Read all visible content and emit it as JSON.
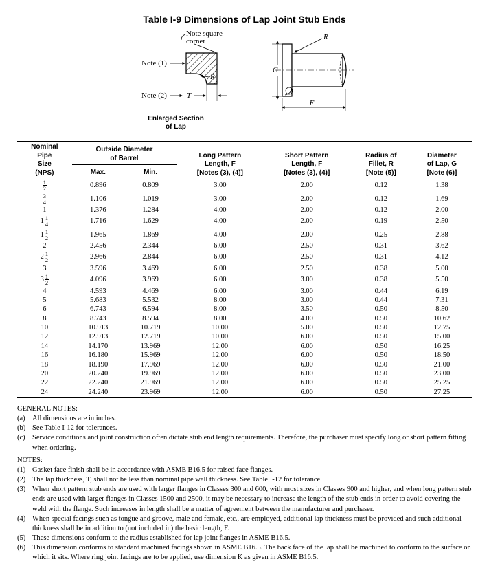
{
  "title": "Table I-9   Dimensions of Lap Joint Stub Ends",
  "figure": {
    "note_square_corner": "Note square\ncorner",
    "note1": "Note (1)",
    "note2": "Note (2)",
    "R": "R",
    "T": "T",
    "G": "G",
    "F": "F",
    "enlarged_caption": "Enlarged Section\nof Lap"
  },
  "columns": {
    "nps": "Nominal\nPipe\nSize\n(NPS)",
    "od": "Outside Diameter\nof Barrel",
    "od_max": "Max.",
    "od_min": "Min.",
    "longF": "Long Pattern\nLength, F\n[Notes (3), (4)]",
    "shortF": "Short Pattern\nLength, F\n[Notes (3), (4)]",
    "radiusR": "Radius of\nFillet, R\n[Note (5)]",
    "lapG": "Diameter\nof Lap, G\n[Note (6)]"
  },
  "rows": [
    {
      "nps_whole": "",
      "nps_num": "1",
      "nps_den": "2",
      "max": "0.896",
      "min": "0.809",
      "long": "3.00",
      "short": "2.00",
      "r": "0.12",
      "g": "1.38",
      "group_start": false
    },
    {
      "nps_whole": "",
      "nps_num": "3",
      "nps_den": "4",
      "max": "1.106",
      "min": "1.019",
      "long": "3.00",
      "short": "2.00",
      "r": "0.12",
      "g": "1.69",
      "group_start": false
    },
    {
      "nps_whole": "1",
      "nps_num": "",
      "nps_den": "",
      "max": "1.376",
      "min": "1.284",
      "long": "4.00",
      "short": "2.00",
      "r": "0.12",
      "g": "2.00",
      "group_start": false
    },
    {
      "nps_whole": "1",
      "nps_num": "1",
      "nps_den": "4",
      "max": "1.716",
      "min": "1.629",
      "long": "4.00",
      "short": "2.00",
      "r": "0.19",
      "g": "2.50",
      "group_start": false
    },
    {
      "nps_whole": "1",
      "nps_num": "1",
      "nps_den": "2",
      "max": "1.965",
      "min": "1.869",
      "long": "4.00",
      "short": "2.00",
      "r": "0.25",
      "g": "2.88",
      "group_start": false
    },
    {
      "nps_whole": "2",
      "nps_num": "",
      "nps_den": "",
      "max": "2.456",
      "min": "2.344",
      "long": "6.00",
      "short": "2.50",
      "r": "0.31",
      "g": "3.62",
      "group_start": true
    },
    {
      "nps_whole": "2",
      "nps_num": "1",
      "nps_den": "2",
      "max": "2.966",
      "min": "2.844",
      "long": "6.00",
      "short": "2.50",
      "r": "0.31",
      "g": "4.12",
      "group_start": false
    },
    {
      "nps_whole": "3",
      "nps_num": "",
      "nps_den": "",
      "max": "3.596",
      "min": "3.469",
      "long": "6.00",
      "short": "2.50",
      "r": "0.38",
      "g": "5.00",
      "group_start": false
    },
    {
      "nps_whole": "3",
      "nps_num": "1",
      "nps_den": "2",
      "max": "4.096",
      "min": "3.969",
      "long": "6.00",
      "short": "3.00",
      "r": "0.38",
      "g": "5.50",
      "group_start": false
    },
    {
      "nps_whole": "4",
      "nps_num": "",
      "nps_den": "",
      "max": "4.593",
      "min": "4.469",
      "long": "6.00",
      "short": "3.00",
      "r": "0.44",
      "g": "6.19",
      "group_start": false
    },
    {
      "nps_whole": "5",
      "nps_num": "",
      "nps_den": "",
      "max": "5.683",
      "min": "5.532",
      "long": "8.00",
      "short": "3.00",
      "r": "0.44",
      "g": "7.31",
      "group_start": true
    },
    {
      "nps_whole": "6",
      "nps_num": "",
      "nps_den": "",
      "max": "6.743",
      "min": "6.594",
      "long": "8.00",
      "short": "3.50",
      "r": "0.50",
      "g": "8.50",
      "group_start": false
    },
    {
      "nps_whole": "8",
      "nps_num": "",
      "nps_den": "",
      "max": "8.743",
      "min": "8.594",
      "long": "8.00",
      "short": "4.00",
      "r": "0.50",
      "g": "10.62",
      "group_start": false
    },
    {
      "nps_whole": "10",
      "nps_num": "",
      "nps_den": "",
      "max": "10.913",
      "min": "10.719",
      "long": "10.00",
      "short": "5.00",
      "r": "0.50",
      "g": "12.75",
      "group_start": false
    },
    {
      "nps_whole": "12",
      "nps_num": "",
      "nps_den": "",
      "max": "12.913",
      "min": "12.719",
      "long": "10.00",
      "short": "6.00",
      "r": "0.50",
      "g": "15.00",
      "group_start": false
    },
    {
      "nps_whole": "14",
      "nps_num": "",
      "nps_den": "",
      "max": "14.170",
      "min": "13.969",
      "long": "12.00",
      "short": "6.00",
      "r": "0.50",
      "g": "16.25",
      "group_start": true
    },
    {
      "nps_whole": "16",
      "nps_num": "",
      "nps_den": "",
      "max": "16.180",
      "min": "15.969",
      "long": "12.00",
      "short": "6.00",
      "r": "0.50",
      "g": "18.50",
      "group_start": false
    },
    {
      "nps_whole": "18",
      "nps_num": "",
      "nps_den": "",
      "max": "18.190",
      "min": "17.969",
      "long": "12.00",
      "short": "6.00",
      "r": "0.50",
      "g": "21.00",
      "group_start": false
    },
    {
      "nps_whole": "20",
      "nps_num": "",
      "nps_den": "",
      "max": "20.240",
      "min": "19.969",
      "long": "12.00",
      "short": "6.00",
      "r": "0.50",
      "g": "23.00",
      "group_start": false
    },
    {
      "nps_whole": "22",
      "nps_num": "",
      "nps_den": "",
      "max": "22.240",
      "min": "21.969",
      "long": "12.00",
      "short": "6.00",
      "r": "0.50",
      "g": "25.25",
      "group_start": false
    },
    {
      "nps_whole": "24",
      "nps_num": "",
      "nps_den": "",
      "max": "24.240",
      "min": "23.969",
      "long": "12.00",
      "short": "6.00",
      "r": "0.50",
      "g": "27.25",
      "group_start": false
    }
  ],
  "general_notes_head": "GENERAL NOTES:",
  "general_notes": [
    {
      "m": "(a)",
      "t": "All dimensions are in inches."
    },
    {
      "m": "(b)",
      "t": "See Table I-12 for tolerances."
    },
    {
      "m": "(c)",
      "t": "Service conditions and joint construction often dictate stub end length requirements. Therefore, the purchaser must specify long or short pattern fitting when ordering."
    }
  ],
  "notes_head": "NOTES:",
  "notes": [
    {
      "m": "(1)",
      "t": "Gasket face finish shall be in accordance with ASME B16.5 for raised face flanges."
    },
    {
      "m": "(2)",
      "t": "The lap thickness, T, shall not be less than nominal pipe wall thickness. See Table I-12 for tolerance."
    },
    {
      "m": "(3)",
      "t": "When short pattern stub ends are used with larger flanges in Classes 300 and 600, with most sizes in Classes 900 and higher, and when long pattern stub ends are used with larger flanges in Classes 1500 and 2500, it may be necessary to increase the length of the stub ends in order to avoid covering the weld with the flange. Such increases in length shall be a matter of agreement between the manufacturer and purchaser."
    },
    {
      "m": "(4)",
      "t": "When special facings such as tongue and groove, male and female, etc., are employed, additional lap thickness must be provided and such additional thickness shall be in addition to (not included in) the basic length, F."
    },
    {
      "m": "(5)",
      "t": "These dimensions conform to the radius established for lap joint flanges in ASME B16.5."
    },
    {
      "m": "(6)",
      "t": "This dimension conforms to standard machined facings shown in ASME B16.5. The back face of the lap shall be machined to conform to the surface on which it sits. Where ring joint facings are to be applied, use dimension K as given in ASME B16.5."
    }
  ]
}
